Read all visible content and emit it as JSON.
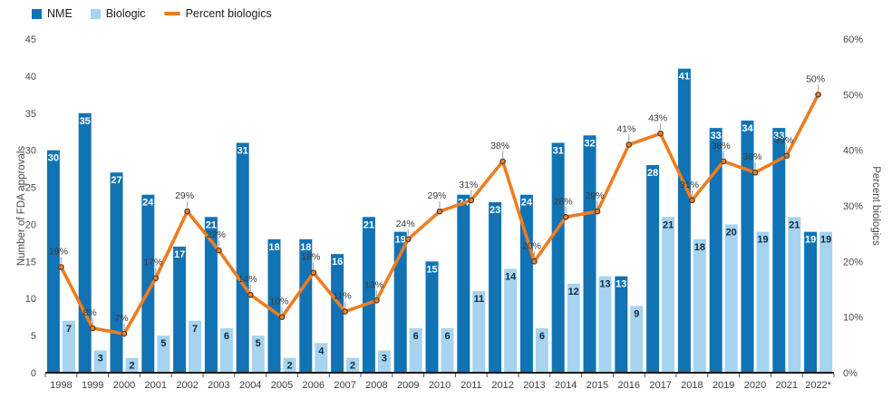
{
  "legend": {
    "items": [
      {
        "label": "NME",
        "swatch": "square",
        "color": "#1173b4"
      },
      {
        "label": "Biologic",
        "swatch": "square",
        "color": "#a6d3ef"
      },
      {
        "label": "Percent biologics",
        "swatch": "line",
        "color": "#ef7c1f"
      }
    ]
  },
  "chart_data": {
    "type": "bar+line",
    "title": "",
    "categories": [
      "1998",
      "1999",
      "2000",
      "2001",
      "2002",
      "2003",
      "2004",
      "2005",
      "2006",
      "2007",
      "2008",
      "2009",
      "2010",
      "2011",
      "2012",
      "2013",
      "2014",
      "2015",
      "2016",
      "2017",
      "2018",
      "2019",
      "2020",
      "2021",
      "2022*"
    ],
    "series": [
      {
        "name": "NME",
        "type": "bar",
        "axis": "left",
        "color": "#1173b4",
        "label_color": "#ffffff",
        "values": [
          30,
          35,
          27,
          24,
          17,
          21,
          31,
          18,
          18,
          16,
          21,
          19,
          15,
          24,
          23,
          24,
          31,
          32,
          13,
          28,
          41,
          33,
          34,
          33,
          19
        ]
      },
      {
        "name": "Biologic",
        "type": "bar",
        "axis": "left",
        "color": "#a6d3ef",
        "label_color": "#14293d",
        "values": [
          7,
          3,
          2,
          5,
          7,
          6,
          5,
          2,
          4,
          2,
          3,
          6,
          6,
          11,
          14,
          6,
          12,
          13,
          9,
          21,
          18,
          20,
          19,
          21,
          19
        ]
      },
      {
        "name": "Percent biologics",
        "type": "line",
        "axis": "right",
        "color": "#ef7c1f",
        "unit": "%",
        "marker": {
          "fill": "#f08127",
          "stroke": "#53402e"
        },
        "values": [
          19,
          8,
          7,
          17,
          29,
          22,
          14,
          10,
          18,
          11,
          13,
          24,
          29,
          31,
          38,
          20,
          28,
          29,
          41,
          43,
          31,
          38,
          36,
          39,
          50
        ]
      }
    ],
    "left_axis": {
      "label": "Number of FDA approvals",
      "min": 0,
      "max": 45,
      "step": 5
    },
    "right_axis": {
      "label": "Percent biologics",
      "min": 0,
      "max": 60,
      "step": 10,
      "unit": "%"
    },
    "legend_position": "top-left",
    "grid": false,
    "baseline_color": "#1a1a1a"
  }
}
